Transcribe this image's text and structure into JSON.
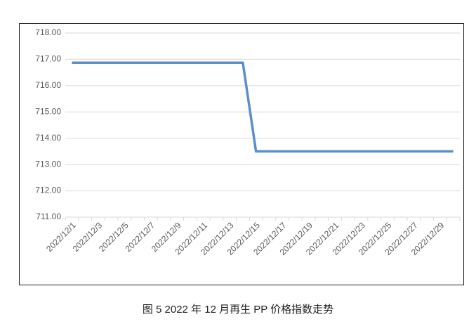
{
  "chart_data": {
    "type": "line",
    "title": "图 5 2022 年 12 月再生 PP 价格指数走势",
    "categories": [
      "2022/12/1",
      null,
      "2022/12/3",
      null,
      "2022/12/5",
      null,
      "2022/12/7",
      null,
      "2022/12/9",
      null,
      "2022/12/11",
      null,
      "2022/12/13",
      null,
      "2022/12/15",
      null,
      "2022/12/17",
      null,
      "2022/12/19",
      null,
      "2022/12/21",
      null,
      "2022/12/23",
      null,
      "2022/12/25",
      null,
      "2022/12/27",
      null,
      "2022/12/29",
      null
    ],
    "series": [
      {
        "name": "再生 PP 价格指数",
        "color": "#5b8fc9",
        "values": [
          716.87,
          716.87,
          716.87,
          716.87,
          716.87,
          716.87,
          716.87,
          716.87,
          716.87,
          716.87,
          716.87,
          716.87,
          716.87,
          716.87,
          713.5,
          713.5,
          713.5,
          713.5,
          713.5,
          713.5,
          713.5,
          713.5,
          713.5,
          713.5,
          713.5,
          713.5,
          713.5,
          713.5,
          713.5,
          713.5
        ]
      }
    ],
    "ylim": [
      711,
      718
    ],
    "yticks": [
      {
        "value": 711,
        "label": "711.00"
      },
      {
        "value": 712,
        "label": "712.00"
      },
      {
        "value": 713,
        "label": "713.00"
      },
      {
        "value": 714,
        "label": "714.00"
      },
      {
        "value": 715,
        "label": "715.00"
      },
      {
        "value": 716,
        "label": "716.00"
      },
      {
        "value": 717,
        "label": "717.00"
      },
      {
        "value": 718,
        "label": "718.00"
      }
    ],
    "grid": true
  }
}
